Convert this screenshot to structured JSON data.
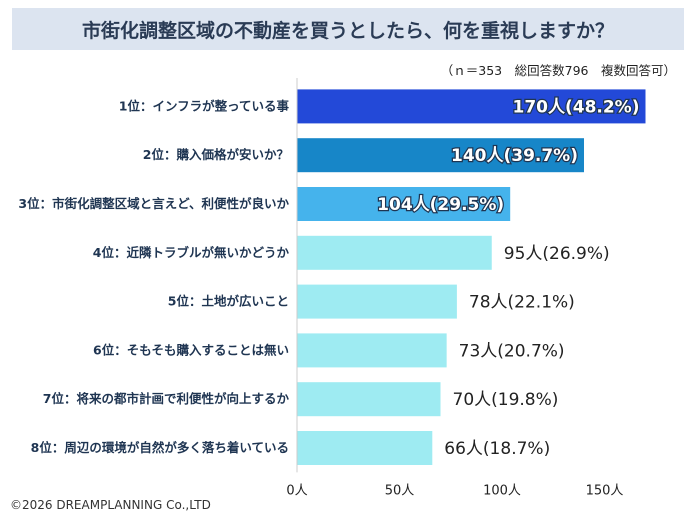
{
  "header": {
    "title": "市街化調整区域の不動産を買うとしたら、何を重視しますか？",
    "note": "（ｎ＝353　総回答数796　複数回答可）"
  },
  "footer": {
    "copyright": "©2026 DREAMPLANNING Co.,LTD"
  },
  "chart_data": {
    "type": "bar",
    "orientation": "horizontal",
    "title": "市街化調整区域の不動産を買うとしたら、何を重視しますか？",
    "categories": [
      "1位：インフラが整っている事",
      "2位：購入価格が安いか？",
      "3位：市街化調整区域と言えど、利便性が良いか",
      "4位：近隣トラブルが無いかどうか",
      "5位：土地が広いこと",
      "6位：そもそも購入することは無い",
      "7位：将来の都市計画で利便性が向上するか",
      "8位：周辺の環境が自然が多く落ち着いている"
    ],
    "values": [
      170,
      140,
      104,
      95,
      78,
      73,
      70,
      66
    ],
    "value_labels": [
      "170人(48.2%)",
      "140人(39.7%)",
      "104人(29.5%)",
      "95人(26.9%)",
      "78人(22.1%)",
      "73人(20.7%)",
      "70人(19.8%)",
      "66人(18.7%)"
    ],
    "xticks": [
      0,
      50,
      100,
      150
    ],
    "xtick_labels": [
      "0人",
      "50人",
      "100人",
      "150人"
    ],
    "xlim": [
      0,
      170
    ],
    "colors": [
      "#2349d8",
      "#1786c8",
      "#45b3ec",
      "#9eebf2",
      "#9eebf2",
      "#9eebf2",
      "#9eebf2",
      "#9eebf2"
    ],
    "label_inside": [
      true,
      true,
      true,
      false,
      false,
      false,
      false,
      false
    ],
    "grid": false
  }
}
